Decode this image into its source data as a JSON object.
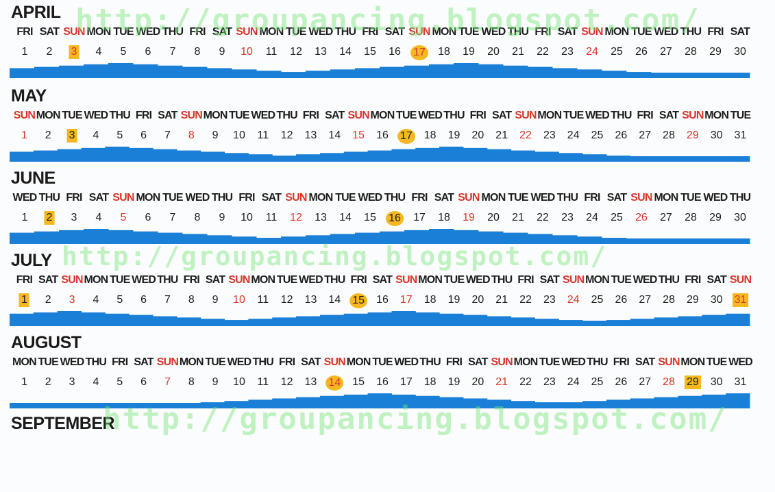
{
  "watermark": "http://groupancing.blogspot.com/",
  "colors": {
    "tide": "#1a7fd6",
    "sunday": "#d8352a",
    "highlight": "#f5b820"
  },
  "weekday_names": [
    "SUN",
    "MON",
    "TUE",
    "WED",
    "THU",
    "FRI",
    "SAT"
  ],
  "months": [
    {
      "name": "APRIL",
      "first_weekday": 5,
      "days": 30,
      "square_days": [
        3
      ],
      "circle_days": [
        17
      ]
    },
    {
      "name": "MAY",
      "first_weekday": 0,
      "days": 31,
      "square_days": [
        3
      ],
      "circle_days": [
        17
      ]
    },
    {
      "name": "JUNE",
      "first_weekday": 3,
      "days": 30,
      "square_days": [
        2
      ],
      "circle_days": [
        16
      ]
    },
    {
      "name": "JULY",
      "first_weekday": 5,
      "days": 31,
      "square_days": [
        1,
        31
      ],
      "circle_days": [
        15
      ]
    },
    {
      "name": "AUGUST",
      "first_weekday": 1,
      "days": 31,
      "square_days": [
        29
      ],
      "circle_days": [
        14
      ]
    },
    {
      "name": "SEPTEMBER",
      "partial": true
    }
  ]
}
